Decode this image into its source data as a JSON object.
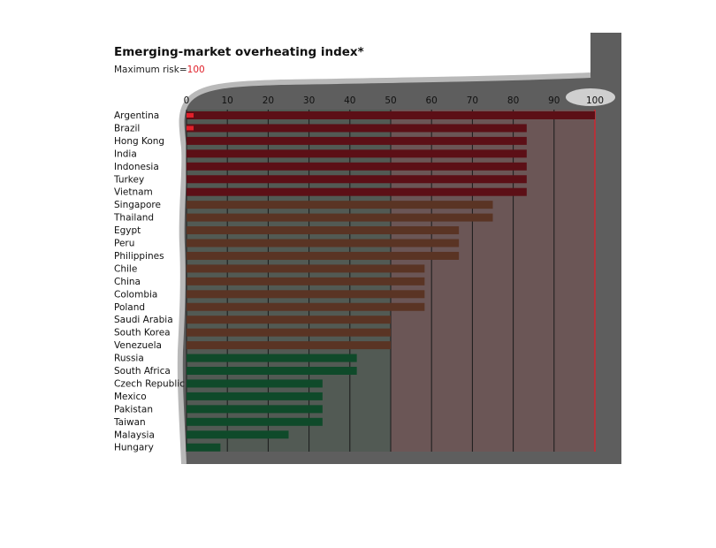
{
  "chart_data": {
    "type": "bar",
    "orientation": "horizontal",
    "title": "Emerging-market overheating index*",
    "subtitle_prefix": "Maximum risk=",
    "subtitle_value": "100",
    "xlim": [
      0,
      100
    ],
    "x_ticks": [
      "0",
      "10",
      "20",
      "30",
      "40",
      "50",
      "60",
      "70",
      "80",
      "90",
      "100"
    ],
    "grid": true,
    "categories": [
      "Argentina",
      "Brazil",
      "Hong Kong",
      "India",
      "Indonesia",
      "Turkey",
      "Vietnam",
      "Singapore",
      "Thailand",
      "Egypt",
      "Peru",
      "Philippines",
      "Chile",
      "China",
      "Colombia",
      "Poland",
      "Saudi Arabia",
      "South Korea",
      "Venezuela",
      "Russia",
      "South Africa",
      "Czech Republic",
      "Mexico",
      "Pakistan",
      "Taiwan",
      "Malaysia",
      "Hungary"
    ],
    "values": [
      100,
      83.3,
      83.3,
      83.3,
      83.3,
      83.3,
      83.3,
      75,
      75,
      66.7,
      66.7,
      66.7,
      58.3,
      58.3,
      58.3,
      58.3,
      50,
      50,
      50,
      41.7,
      41.7,
      33.3,
      33.3,
      33.3,
      33.3,
      25,
      8.3
    ],
    "colors": {
      "high": "#5c0f16",
      "medium": "#5a3424",
      "low": "#0f4a2a",
      "accent_red": "#e0202a",
      "grid": "#1a1a1a",
      "shade_red": "#6b5656",
      "shade_neutral": "#5b5b5b",
      "shade_green": "#525a54",
      "panel_bg": "#5e5e5e"
    }
  }
}
